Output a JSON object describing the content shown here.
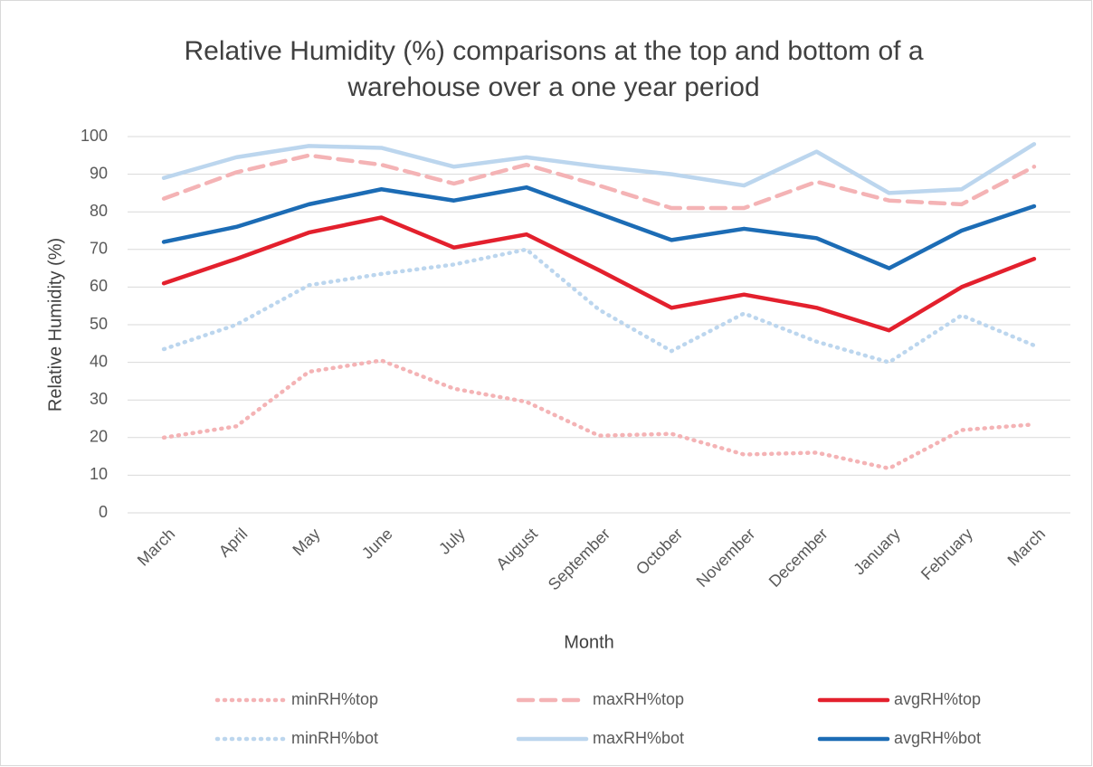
{
  "chart_data": {
    "type": "line",
    "title": [
      "Relative Humidity (%) comparisons at the top and bottom of a",
      "warehouse over a one year period"
    ],
    "x_label": "Month",
    "y_label": "Relative Humidity (%)",
    "categories": [
      "March",
      "April",
      "May",
      "June",
      "July",
      "August",
      "September",
      "October",
      "November",
      "December",
      "January",
      "February",
      "March"
    ],
    "ylim": [
      0,
      100
    ],
    "yticks": [
      0,
      10,
      20,
      30,
      40,
      50,
      60,
      70,
      80,
      90,
      100
    ],
    "grid": true,
    "legend": "bottom",
    "series": [
      {
        "name": "minRH%top",
        "color": "#f4b3b5",
        "style": "dotted",
        "values": [
          20,
          23,
          37.5,
          40.5,
          33,
          29.5,
          20.5,
          21,
          15.5,
          16,
          11.8,
          22,
          23.5
        ]
      },
      {
        "name": "maxRH%top",
        "color": "#f4b3b5",
        "style": "dashed",
        "values": [
          83.5,
          90.5,
          95,
          92.5,
          87.5,
          92.5,
          87,
          81,
          81,
          88,
          83,
          82,
          92
        ]
      },
      {
        "name": "avgRH%top",
        "color": "#e3202d",
        "style": "solid",
        "values": [
          61,
          67.5,
          74.5,
          78.5,
          70.5,
          74,
          64.5,
          54.5,
          58,
          54.5,
          48.5,
          60,
          67.5
        ]
      },
      {
        "name": "minRH%bot",
        "color": "#bcd6ee",
        "style": "dotted",
        "values": [
          43.5,
          50,
          60.5,
          63.5,
          66,
          70,
          54,
          43,
          53,
          45.5,
          40,
          52.5,
          44.5
        ]
      },
      {
        "name": "maxRH%bot",
        "color": "#bcd6ee",
        "style": "solid",
        "values": [
          89,
          94.5,
          97.5,
          97,
          92,
          94.5,
          92,
          90,
          87,
          96,
          85,
          86,
          98
        ]
      },
      {
        "name": "avgRH%bot",
        "color": "#1c6cb5",
        "style": "solid",
        "values": [
          72,
          76,
          82,
          86,
          83,
          86.5,
          79.5,
          72.5,
          75.5,
          73,
          65,
          75,
          81.5
        ]
      }
    ]
  }
}
